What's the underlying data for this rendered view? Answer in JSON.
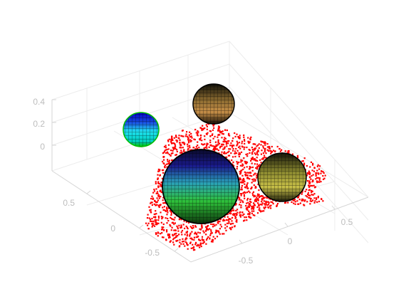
{
  "chart_data": {
    "type": "scatter",
    "title": "",
    "xlabel": "",
    "ylabel": "",
    "zlabel": "",
    "grid": true,
    "view": "3d-perspective",
    "axes": {
      "x": {
        "ticks": [
          "-0.5",
          "0",
          "0.5"
        ]
      },
      "y": {
        "ticks": [
          "-0.5",
          "0",
          "0.5"
        ]
      },
      "z": {
        "ticks": [
          "0",
          "0.2",
          "0.4"
        ]
      }
    },
    "point_cloud": {
      "color": "#ff0000",
      "approx_points": 2500
    },
    "spheres": [
      {
        "name": "",
        "center": [
          0.05,
          -0.35,
          0.1
        ],
        "radius": 0.28,
        "colors": [
          "#000080",
          "#00bfff",
          "#00c000",
          "#000000"
        ]
      },
      {
        "name": "",
        "center": [
          0.55,
          0.05,
          0.05
        ],
        "radius": 0.18,
        "colors": [
          "#c8c040",
          "#404020",
          "#000000"
        ]
      },
      {
        "name": "",
        "center": [
          0.05,
          0.4,
          0.32
        ],
        "radius": 0.16,
        "colors": [
          "#c88040",
          "#604020",
          "#000000"
        ]
      },
      {
        "name": "",
        "center": [
          -0.55,
          0.25,
          0.28
        ],
        "radius": 0.13,
        "colors": [
          "#0000ff",
          "#00e5ff",
          "#00ff00",
          "#000000"
        ]
      }
    ]
  }
}
